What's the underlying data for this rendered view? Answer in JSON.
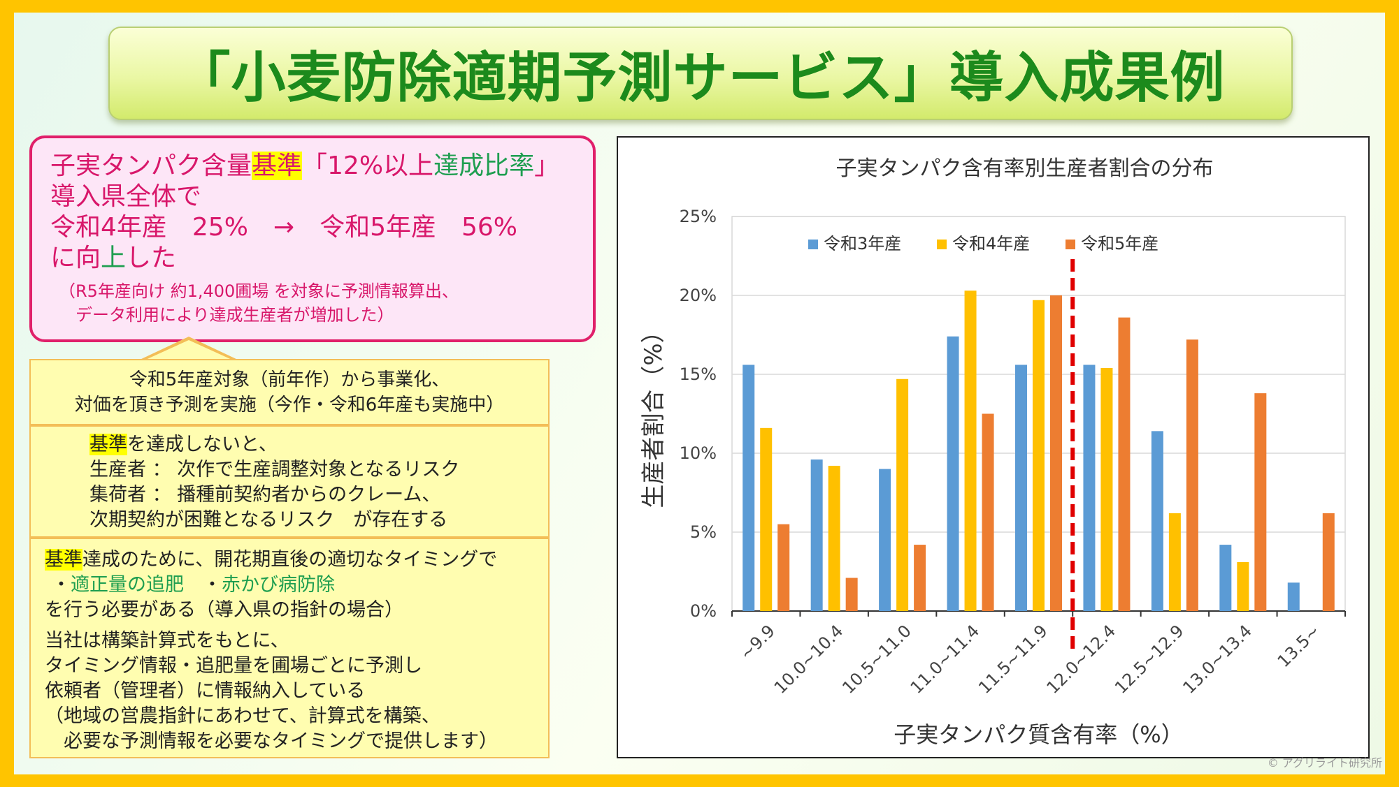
{
  "title": "「小麦防除適期予測サービス」導入成果例",
  "result": {
    "line1_a": "子実タンパク含量",
    "line1_b": "基準",
    "line1_c": "「12%以上",
    "line1_d": "達成比率",
    "line1_e": "」",
    "line2": "導入県全体で",
    "line3": "令和4年産　25%　→　令和5年産　56%",
    "line4_a": "に向",
    "line4_b": "上",
    "line4_c": "した",
    "note1": "（R5年産向け 約1,400圃場 を対象に予測情報算出、",
    "note2": "　データ利用により達成生産者が増加した）"
  },
  "callout": {
    "box1_l1": "令和5年産対象（前年作）から事業化、",
    "box1_l2": "対価を頂き予測を実施（今作・令和6年産も実施中）",
    "box2_hl": "基準",
    "box2_l1": "を達成しないと、",
    "box2_l2": "生産者 ： 次作で生産調整対象となるリスク",
    "box2_l3": "集荷者 ： 播種前契約者からのクレーム、",
    "box2_l4": "次期契約が困難となるリスク　が存在する",
    "box3_hl": "基準",
    "box3_l1": "達成のために、開花期直後の適切なタイミングで",
    "box3_l2a": "・",
    "box3_l2b": "適正量の追肥",
    "box3_l2c": "　・",
    "box3_l2d": "赤かび病防除",
    "box3_l3": "を行う必要がある（導入県の指針の場合）",
    "box3_l4": "当社は構築計算式をもとに、",
    "box3_l5": "タイミング情報・追肥量を圃場ごとに予測し",
    "box3_l6": "依頼者（管理者）に情報納入している",
    "box3_l7": "（地域の営農指針にあわせて、計算式を構築、",
    "box3_l8": "　必要な予測情報を必要なタイミングで提供します）"
  },
  "credit": "© アグリライト研究所",
  "chart_data": {
    "type": "bar",
    "title": "子実タンパク含有率別生産者割合の分布",
    "xlabel": "子実タンパク質含有率（%）",
    "ylabel": "生産者割合（%）",
    "categories": [
      "~9.9",
      "10.0~10.4",
      "10.5~11.0",
      "11.0~11.4",
      "11.5~11.9",
      "12.0~12.4",
      "12.5~12.9",
      "13.0~13.4",
      "13.5~"
    ],
    "series": [
      {
        "name": "令和3年産",
        "color": "#5b9bd5",
        "values": [
          15.6,
          9.6,
          9.0,
          17.4,
          15.6,
          15.6,
          11.4,
          4.2,
          1.8
        ]
      },
      {
        "name": "令和4年産",
        "color": "#ffc000",
        "values": [
          11.6,
          9.2,
          14.7,
          20.3,
          19.7,
          15.4,
          6.2,
          3.1,
          null
        ]
      },
      {
        "name": "令和5年産",
        "color": "#ed7d31",
        "values": [
          5.5,
          2.1,
          4.2,
          12.5,
          20.0,
          18.6,
          17.2,
          13.8,
          6.2
        ]
      }
    ],
    "ylim": [
      0,
      25
    ],
    "yticks": [
      "0%",
      "5%",
      "10%",
      "15%",
      "20%",
      "25%"
    ],
    "ytick_values": [
      0,
      5,
      10,
      15,
      20,
      25
    ],
    "threshold_line": {
      "between_categories": [
        "11.5~11.9",
        "12.0~12.4"
      ],
      "color": "#e00000",
      "style": "dashed"
    },
    "legend_position": "top",
    "grid": true
  }
}
